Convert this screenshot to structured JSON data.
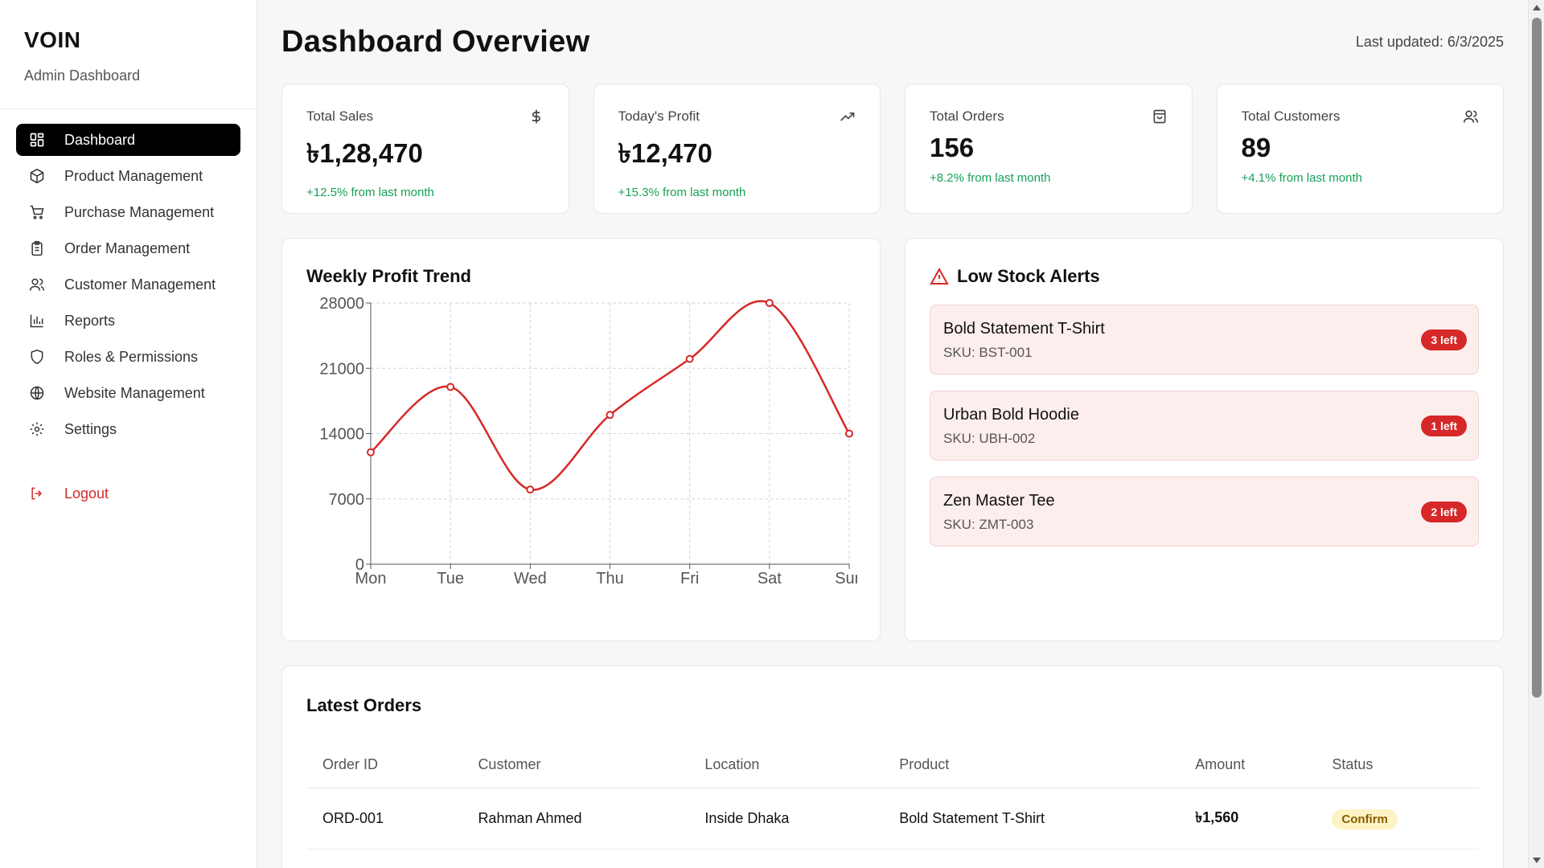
{
  "brand": {
    "title": "VOIN",
    "subtitle": "Admin Dashboard"
  },
  "sidebar": {
    "items": [
      {
        "label": "Dashboard",
        "icon": "dashboard-grid-icon",
        "active": true
      },
      {
        "label": "Product Management",
        "icon": "box-icon"
      },
      {
        "label": "Purchase Management",
        "icon": "cart-icon"
      },
      {
        "label": "Order Management",
        "icon": "clipboard-icon"
      },
      {
        "label": "Customer Management",
        "icon": "users-icon"
      },
      {
        "label": "Reports",
        "icon": "bar-chart-icon"
      },
      {
        "label": "Roles & Permissions",
        "icon": "shield-icon"
      },
      {
        "label": "Website Management",
        "icon": "globe-icon"
      },
      {
        "label": "Settings",
        "icon": "gear-icon"
      }
    ],
    "logout": "Logout"
  },
  "header": {
    "title": "Dashboard Overview",
    "last_updated": "Last updated: 6/3/2025"
  },
  "stats": [
    {
      "label": "Total Sales",
      "value": "৳1,28,470",
      "delta": "+12.5% from last month",
      "icon": "dollar-icon"
    },
    {
      "label": "Today's Profit",
      "value": "৳12,470",
      "delta": "+15.3% from last month",
      "icon": "trending-up-icon"
    },
    {
      "label": "Total Orders",
      "value": "156",
      "delta": "+8.2% from last month",
      "icon": "shopping-bag-icon"
    },
    {
      "label": "Total Customers",
      "value": "89",
      "delta": "+4.1% from last month",
      "icon": "users-icon"
    }
  ],
  "chart_data": {
    "type": "line",
    "title": "Weekly Profit Trend",
    "categories": [
      "Mon",
      "Tue",
      "Wed",
      "Thu",
      "Fri",
      "Sat",
      "Sun"
    ],
    "values": [
      12000,
      19000,
      8000,
      16000,
      22000,
      28000,
      14000
    ],
    "yticks": [
      0,
      7000,
      14000,
      21000,
      28000
    ],
    "ylim": [
      0,
      28000
    ],
    "grid": true,
    "color": "#d62828"
  },
  "alerts": {
    "title": "Low Stock Alerts",
    "items": [
      {
        "name": "Bold Statement T-Shirt",
        "sku": "SKU: BST-001",
        "badge": "3 left"
      },
      {
        "name": "Urban Bold Hoodie",
        "sku": "SKU: UBH-002",
        "badge": "1 left"
      },
      {
        "name": "Zen Master Tee",
        "sku": "SKU: ZMT-003",
        "badge": "2 left"
      }
    ]
  },
  "orders": {
    "title": "Latest Orders",
    "columns": [
      "Order ID",
      "Customer",
      "Location",
      "Product",
      "Amount",
      "Status"
    ],
    "rows": [
      {
        "id": "ORD-001",
        "customer": "Rahman Ahmed",
        "location": "Inside Dhaka",
        "product": "Bold Statement T-Shirt",
        "amount": "৳1,560",
        "status": "Confirm"
      }
    ]
  }
}
